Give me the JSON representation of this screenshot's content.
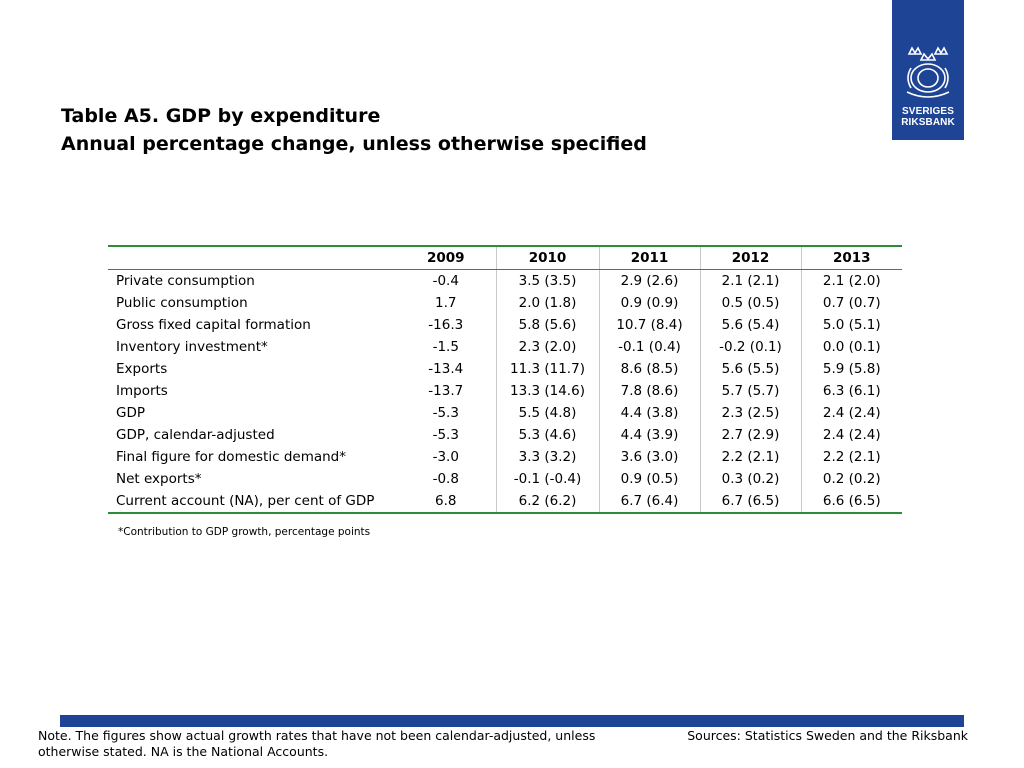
{
  "title": {
    "line1": "Table A5. GDP by expenditure",
    "line2": "Annual percentage change, unless otherwise specified"
  },
  "logo": {
    "line1": "SVERIGES",
    "line2": "RIKSBANK",
    "icon": "riksbank-crest-icon",
    "color": "#1e4496"
  },
  "table": {
    "headers": [
      "",
      "2009",
      "2010",
      "2011",
      "2012",
      "2013"
    ],
    "rows": [
      {
        "label": "Private consumption",
        "values": [
          "-0.4",
          "3.5 (3.5)",
          "2.9 (2.6)",
          "2.1 (2.1)",
          "2.1 (2.0)"
        ]
      },
      {
        "label": "Public consumption",
        "values": [
          "1.7",
          "2.0 (1.8)",
          "0.9 (0.9)",
          "0.5 (0.5)",
          "0.7 (0.7)"
        ]
      },
      {
        "label": "Gross fixed capital formation",
        "values": [
          "-16.3",
          "5.8 (5.6)",
          "10.7 (8.4)",
          "5.6 (5.4)",
          "5.0 (5.1)"
        ]
      },
      {
        "label": "Inventory investment*",
        "values": [
          "-1.5",
          "2.3 (2.0)",
          "-0.1 (0.4)",
          "-0.2 (0.1)",
          "0.0 (0.1)"
        ]
      },
      {
        "label": "Exports",
        "values": [
          "-13.4",
          "11.3 (11.7)",
          "8.6 (8.5)",
          "5.6 (5.5)",
          "5.9 (5.8)"
        ]
      },
      {
        "label": "Imports",
        "values": [
          "-13.7",
          "13.3 (14.6)",
          "7.8 (8.6)",
          "5.7 (5.7)",
          "6.3 (6.1)"
        ]
      },
      {
        "label": "GDP",
        "values": [
          "-5.3",
          "5.5 (4.8)",
          "4.4 (3.8)",
          "2.3 (2.5)",
          "2.4 (2.4)"
        ]
      },
      {
        "label": "GDP, calendar-adjusted",
        "values": [
          "-5.3",
          "5.3 (4.6)",
          "4.4 (3.9)",
          "2.7 (2.9)",
          "2.4 (2.4)"
        ]
      },
      {
        "label": "Final figure for domestic demand*",
        "values": [
          "-3.0",
          "3.3 (3.2)",
          "3.6 (3.0)",
          "2.2 (2.1)",
          "2.2 (2.1)"
        ]
      },
      {
        "label": "Net exports*",
        "values": [
          "-0.8",
          "-0.1 (-0.4)",
          "0.9 (0.5)",
          "0.3 (0.2)",
          "0.2 (0.2)"
        ]
      },
      {
        "label": "Current account (NA), per cent of GDP",
        "values": [
          "6.8",
          "6.2 (6.2)",
          "6.7 (6.4)",
          "6.7 (6.5)",
          "6.6 (6.5)"
        ]
      }
    ],
    "rule_color": "#2e8b3a"
  },
  "footnote": "*Contribution to GDP growth, percentage points",
  "note": "Note. The figures show actual growth rates that have not been calendar-adjusted, unless otherwise stated. NA is the National Accounts.",
  "sources": "Sources: Statistics Sweden and the Riksbank",
  "colors": {
    "brand_blue": "#1e4496",
    "table_rule_green": "#2e8b3a"
  }
}
